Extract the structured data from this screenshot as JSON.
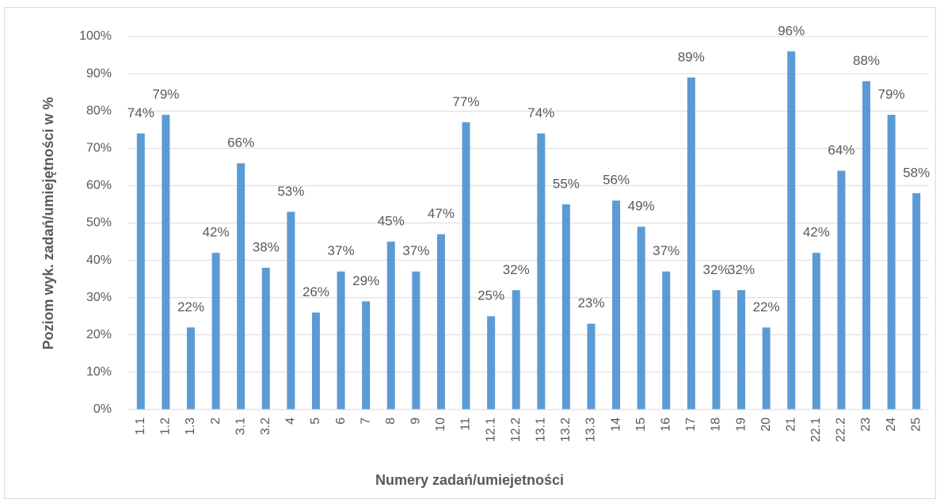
{
  "chart_data": {
    "type": "bar",
    "x_label": "Numery zadań/umiejetności",
    "y_label": "Poziom wyk. zadań/umiejętności w %",
    "categories": [
      "1.1",
      "1.2",
      "1.3",
      "2",
      "3.1",
      "3.2",
      "4",
      "5",
      "6",
      "7",
      "8",
      "9",
      "10",
      "11",
      "12.1",
      "12.2",
      "13.1",
      "13.2",
      "13.3",
      "14",
      "15",
      "16",
      "17",
      "18",
      "19",
      "20",
      "21",
      "22.1",
      "22.2",
      "23",
      "24",
      "25"
    ],
    "values": [
      74,
      79,
      22,
      42,
      66,
      38,
      53,
      26,
      37,
      29,
      45,
      37,
      47,
      77,
      25,
      32,
      74,
      55,
      23,
      56,
      49,
      37,
      89,
      32,
      32,
      22,
      96,
      42,
      64,
      88,
      79,
      58
    ],
    "value_labels": [
      "74%",
      "79%",
      "22%",
      "42%",
      "66%",
      "38%",
      "53%",
      "26%",
      "37%",
      "29%",
      "45%",
      "37%",
      "47%",
      "77%",
      "25%",
      "32%",
      "74%",
      "55%",
      "23%",
      "56%",
      "49%",
      "37%",
      "89%",
      "32%",
      "32%",
      "22%",
      "96%",
      "42%",
      "64%",
      "88%",
      "79%",
      "58%"
    ],
    "color": "#5b9bd5",
    "ylim": [
      0,
      100
    ],
    "yticks": [
      {
        "value": 0,
        "label": "0%"
      },
      {
        "value": 10,
        "label": "10%"
      },
      {
        "value": 20,
        "label": "20%"
      },
      {
        "value": 30,
        "label": "30%"
      },
      {
        "value": 40,
        "label": "40%"
      },
      {
        "value": 50,
        "label": "50%"
      },
      {
        "value": 60,
        "label": "60%"
      },
      {
        "value": 70,
        "label": "70%"
      },
      {
        "value": 80,
        "label": "80%"
      },
      {
        "value": 90,
        "label": "90%"
      },
      {
        "value": 100,
        "label": "100%"
      }
    ],
    "grid": true
  }
}
